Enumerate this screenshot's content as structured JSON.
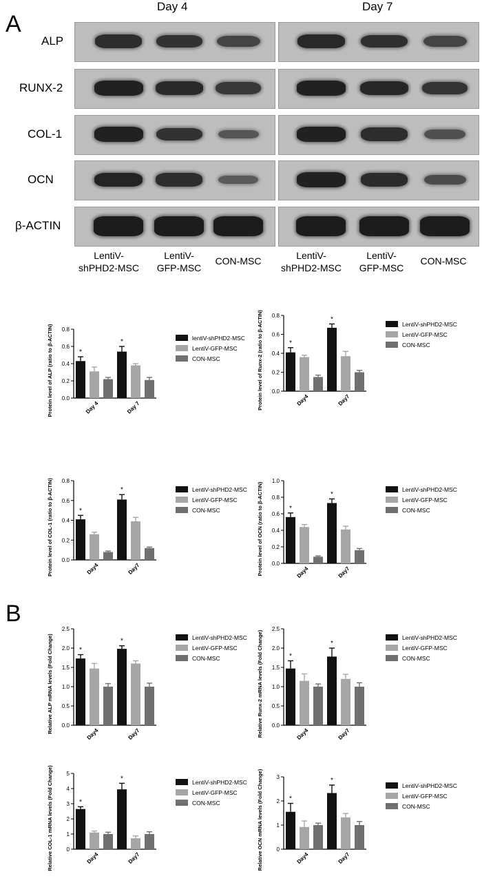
{
  "panel_a": {
    "letter": "A",
    "days": [
      "Day 4",
      "Day 7"
    ],
    "rows": [
      {
        "label": "ALP",
        "intensity": [
          0.8,
          0.75,
          0.55,
          0.85,
          0.78,
          0.55
        ]
      },
      {
        "label": "RUNX-2",
        "intensity": [
          0.95,
          0.85,
          0.7,
          0.95,
          0.88,
          0.72
        ]
      },
      {
        "label": "COL-1",
        "intensity": [
          0.95,
          0.75,
          0.35,
          0.95,
          0.8,
          0.4
        ]
      },
      {
        "label": "OCN",
        "intensity": [
          0.9,
          0.8,
          0.3,
          0.95,
          0.82,
          0.45
        ]
      },
      {
        "label": "β-ACTIN",
        "intensity": [
          1.0,
          1.0,
          1.0,
          1.0,
          1.0,
          1.0
        ]
      }
    ],
    "lanes": [
      "LentiV-\nshPHD2-MSC",
      "LentiV-\nGFP-MSC",
      "CON-MSC",
      "LentiV-\nshPHD2-MSC",
      "LentiV-\nGFP-MSC",
      "CON-MSC"
    ]
  },
  "panel_b": {
    "letter": "B"
  },
  "series_colors": [
    "#111111",
    "#a6a6a6",
    "#707070"
  ],
  "chart_data": [
    {
      "type": "bar",
      "categories": [
        "Day 4",
        "Day 7"
      ],
      "ylabel": "Protein level of ALP (ratio to β-ACTIN)",
      "ylim": [
        0,
        0.8
      ],
      "yticks": [
        "0.0",
        "0.2",
        "0.4",
        "0.6",
        "0.8"
      ],
      "series": [
        {
          "name": "lentiV-shPHD2-MSC",
          "values": [
            0.43,
            0.54
          ],
          "errors": [
            0.05,
            0.06
          ]
        },
        {
          "name": "LentiV-GFP-MSC",
          "values": [
            0.31,
            0.38
          ],
          "errors": [
            0.05,
            0.02
          ]
        },
        {
          "name": "CON-MSC",
          "values": [
            0.22,
            0.21
          ],
          "errors": [
            0.02,
            0.03
          ]
        }
      ],
      "annotations": [
        "*",
        "*"
      ]
    },
    {
      "type": "bar",
      "categories": [
        "Day4",
        "Day7"
      ],
      "ylabel": "Protein level of Runx-2 (ratio to β-ACTIN)",
      "ylim": [
        0,
        0.8
      ],
      "yticks": [
        "0.0",
        "0.2",
        "0.4",
        "0.6",
        "0.8"
      ],
      "series": [
        {
          "name": "LentiV-shPHD2-MSC",
          "values": [
            0.41,
            0.67
          ],
          "errors": [
            0.05,
            0.04
          ]
        },
        {
          "name": "LentiV-GFP-MSC",
          "values": [
            0.36,
            0.37
          ],
          "errors": [
            0.02,
            0.05
          ]
        },
        {
          "name": "CON-MSC",
          "values": [
            0.15,
            0.2
          ],
          "errors": [
            0.02,
            0.02
          ]
        }
      ],
      "annotations": [
        "*",
        "*"
      ]
    },
    {
      "type": "bar",
      "categories": [
        "Day4",
        "Day7"
      ],
      "ylabel": "Protein level of COL-1 (ratio to β-ACTIN)",
      "ylim": [
        0,
        0.8
      ],
      "yticks": [
        "0.0",
        "0.2",
        "0.4",
        "0.6",
        "0.8"
      ],
      "series": [
        {
          "name": "LentiV-shPHD2-MSC",
          "values": [
            0.41,
            0.61
          ],
          "errors": [
            0.04,
            0.05
          ]
        },
        {
          "name": "LentiV-GFP-MSC",
          "values": [
            0.26,
            0.39
          ],
          "errors": [
            0.02,
            0.04
          ]
        },
        {
          "name": "CON-MSC",
          "values": [
            0.08,
            0.12
          ],
          "errors": [
            0.01,
            0.01
          ]
        }
      ],
      "annotations": [
        "*",
        "*"
      ]
    },
    {
      "type": "bar",
      "categories": [
        "Day4",
        "Day7"
      ],
      "ylabel": "Protein level of OCN (ratio to β-ACTIN)",
      "ylim": [
        0,
        1.0
      ],
      "yticks": [
        "0.0",
        "0.2",
        "0.4",
        "0.6",
        "0.8",
        "1.0"
      ],
      "series": [
        {
          "name": "LentiV-shPHD2-MSC",
          "values": [
            0.56,
            0.73
          ],
          "errors": [
            0.05,
            0.05
          ]
        },
        {
          "name": "LentiV-GFP-MSC",
          "values": [
            0.44,
            0.41
          ],
          "errors": [
            0.03,
            0.04
          ]
        },
        {
          "name": "CON-MSC",
          "values": [
            0.08,
            0.16
          ],
          "errors": [
            0.01,
            0.02
          ]
        }
      ],
      "annotations": [
        "*",
        "*"
      ]
    },
    {
      "type": "bar",
      "categories": [
        "Day4",
        "Day7"
      ],
      "ylabel": "Relative ALP mRNA levels (Fold Change)",
      "ylim": [
        0,
        2.5
      ],
      "yticks": [
        "0.0",
        "0.5",
        "1.0",
        "1.5",
        "2.0",
        "2.5"
      ],
      "series": [
        {
          "name": "LentiV-shPHD2-MSC",
          "values": [
            1.73,
            1.98
          ],
          "errors": [
            0.1,
            0.08
          ]
        },
        {
          "name": "LentiV-GFP-MSC",
          "values": [
            1.47,
            1.6
          ],
          "errors": [
            0.13,
            0.07
          ]
        },
        {
          "name": "CON-MSC",
          "values": [
            1.0,
            1.0
          ],
          "errors": [
            0.08,
            0.09
          ]
        }
      ],
      "annotations": [
        "*",
        "*"
      ]
    },
    {
      "type": "bar",
      "categories": [
        "Day4",
        "Day7"
      ],
      "ylabel": "Relative Runx-2 mRNA levels (Fold Change)",
      "ylim": [
        0,
        2.5
      ],
      "yticks": [
        "0.0",
        "0.5",
        "1.0",
        "1.5",
        "2.0",
        "2.5"
      ],
      "series": [
        {
          "name": "LentiV-shPHD2-MSC",
          "values": [
            1.47,
            1.78
          ],
          "errors": [
            0.2,
            0.22
          ]
        },
        {
          "name": "LentiV-GFP-MSC",
          "values": [
            1.15,
            1.2
          ],
          "errors": [
            0.18,
            0.12
          ]
        },
        {
          "name": "CON-MSC",
          "values": [
            1.0,
            1.0
          ],
          "errors": [
            0.07,
            0.1
          ]
        }
      ],
      "annotations": [
        "*",
        "*"
      ]
    },
    {
      "type": "bar",
      "categories": [
        "Day4",
        "Day7"
      ],
      "ylabel": "Relative COL-1 mRNA levels (Fold Change)",
      "ylim": [
        0,
        5
      ],
      "yticks": [
        "0",
        "1",
        "2",
        "3",
        "4",
        "5"
      ],
      "series": [
        {
          "name": "LentiV-shPHD2-MSC",
          "values": [
            2.65,
            3.95
          ],
          "errors": [
            0.15,
            0.4
          ]
        },
        {
          "name": "LentiV-GFP-MSC",
          "values": [
            1.1,
            0.72
          ],
          "errors": [
            0.1,
            0.15
          ]
        },
        {
          "name": "CON-MSC",
          "values": [
            1.0,
            1.0
          ],
          "errors": [
            0.12,
            0.15
          ]
        }
      ],
      "annotations": [
        "*",
        "*"
      ]
    },
    {
      "type": "bar",
      "categories": [
        "Day4",
        "Day7"
      ],
      "ylabel": "Relative OCN mRNA levels (Fold Change)",
      "ylim": [
        0,
        3
      ],
      "yticks": [
        "0",
        "1",
        "2",
        "3"
      ],
      "series": [
        {
          "name": "LentiV-shPHD2-MSC",
          "values": [
            1.55,
            2.33
          ],
          "errors": [
            0.35,
            0.33
          ]
        },
        {
          "name": "LentiV-GFP-MSC",
          "values": [
            0.92,
            1.32
          ],
          "errors": [
            0.25,
            0.16
          ]
        },
        {
          "name": "CON-MSC",
          "values": [
            1.0,
            1.0
          ],
          "errors": [
            0.08,
            0.15
          ]
        }
      ],
      "annotations": [
        "*",
        "*"
      ]
    }
  ]
}
